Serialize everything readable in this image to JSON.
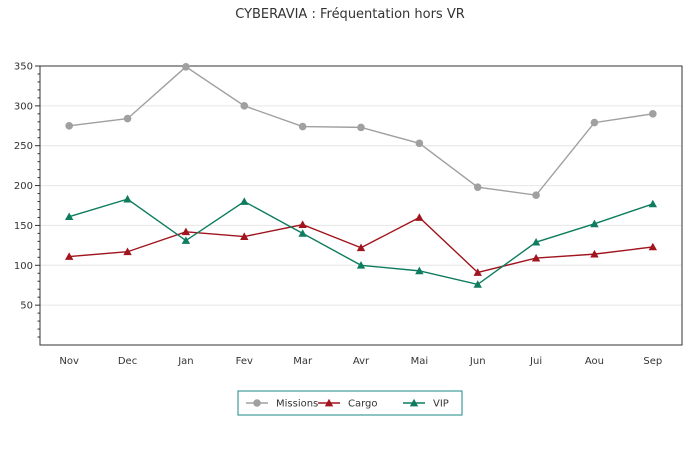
{
  "chart_data": {
    "type": "line",
    "title": "CYBERAVIA : Fréquentation hors VR",
    "xlabel": "",
    "ylabel": "",
    "categories": [
      "Nov",
      "Dec",
      "Jan",
      "Fev",
      "Mar",
      "Avr",
      "Mai",
      "Jun",
      "Jui",
      "Aou",
      "Sep"
    ],
    "ylim": [
      0,
      350
    ],
    "yticks": [
      50,
      100,
      150,
      200,
      250,
      300,
      350
    ],
    "grid": true,
    "legend_position": "bottom-center",
    "series": [
      {
        "name": "Missions",
        "color": "#a0a0a0",
        "marker": "circle",
        "values": [
          275,
          284,
          349,
          300,
          274,
          273,
          253,
          198,
          188,
          279,
          290
        ]
      },
      {
        "name": "Cargo",
        "color": "#a0151e",
        "marker": "triangle",
        "values": [
          111,
          117,
          142,
          136,
          151,
          122,
          160,
          91,
          109,
          114,
          123
        ]
      },
      {
        "name": "VIP",
        "color": "#0e7c5e",
        "marker": "triangle",
        "values": [
          161,
          183,
          131,
          180,
          140,
          100,
          93,
          76,
          129,
          152,
          177
        ]
      }
    ]
  }
}
